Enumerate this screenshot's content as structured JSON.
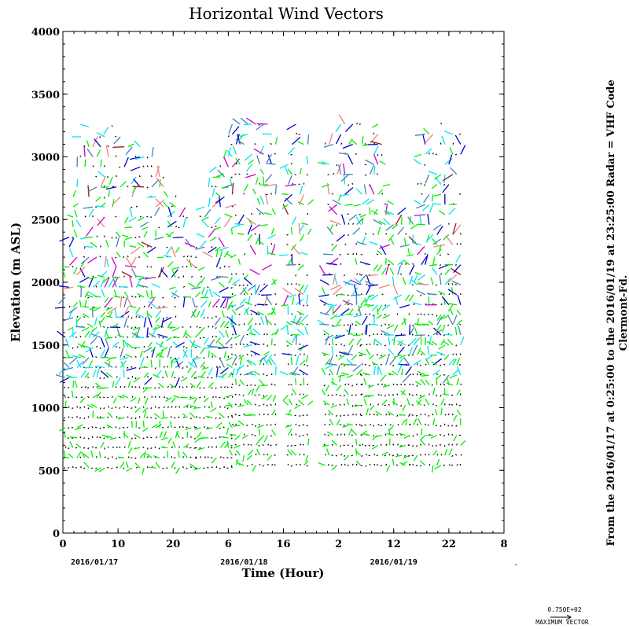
{
  "chart_data": {
    "type": "vector-field",
    "title": "Horizontal Wind Vectors",
    "xlabel": "Time (Hour)",
    "ylabel": "Elevation (m ASL)",
    "xlim": [
      0,
      56
    ],
    "ylim": [
      0,
      4000
    ],
    "x_tick_values": [
      0,
      7,
      14,
      21,
      28,
      35,
      42,
      49,
      56
    ],
    "x_tick_labels": [
      "0",
      "10",
      "20",
      "6",
      "16",
      "2",
      "12",
      "22",
      "8"
    ],
    "y_tick_values": [
      0,
      500,
      1000,
      1500,
      2000,
      2500,
      3000,
      3500,
      4000
    ],
    "y_tick_labels": [
      "0",
      "500",
      "1000",
      "1500",
      "2000",
      "2500",
      "3000",
      "3500",
      "4000"
    ],
    "date_labels": [
      {
        "x": 4,
        "label": "2016/01/17"
      },
      {
        "x": 23,
        "label": "2016/01/18"
      },
      {
        "x": 42,
        "label": "2016/01/19"
      }
    ],
    "side_label_1": "From the 2016/01/17 at  0:25:00 to the 2016/01/19 at 23:25:00 Radar = VHF Code",
    "side_label_2": "Clermont-Fd.",
    "max_vector_value": "0.750E+02",
    "max_vector_label": "MAXIMUM VECTOR",
    "grid": false,
    "legend": "none",
    "colors": {
      "calm": "#000000",
      "light": "#00ee00",
      "medium": "#00e5ee",
      "strong": "#4682b4",
      "stronger": "#0000cd",
      "very_strong": "#cc00cc",
      "extreme": "#f08080",
      "max": "#8b1a1a"
    },
    "segments": [
      {
        "name": "day1-early",
        "x_start": 0.3,
        "x_end": 17.0,
        "z_low": 520,
        "z_high_profile": [
          [
            0.3,
            2100
          ],
          [
            1,
            2600
          ],
          [
            2.5,
            3300
          ],
          [
            6,
            3300
          ],
          [
            8,
            3200
          ],
          [
            12,
            3000
          ],
          [
            15,
            2600
          ],
          [
            17,
            2400
          ]
        ]
      },
      {
        "name": "day1-late",
        "x_start": 17.0,
        "x_end": 21.5,
        "z_low": 520,
        "z_high_profile": [
          [
            17,
            2400
          ],
          [
            19,
            2900
          ],
          [
            21.5,
            3300
          ]
        ]
      },
      {
        "name": "day2-a",
        "x_start": 21.5,
        "x_end": 27.2,
        "z_low": 540,
        "z_high_profile": [
          [
            21.5,
            3300
          ],
          [
            27.2,
            3300
          ]
        ]
      },
      {
        "name": "day2-b",
        "x_start": 28.6,
        "x_end": 31.4,
        "z_low": 540,
        "z_high_profile": [
          [
            28.6,
            3300
          ],
          [
            31.4,
            3300
          ]
        ]
      },
      {
        "name": "day2-c",
        "x_start": 33.3,
        "x_end": 38.0,
        "z_low": 540,
        "z_high_profile": [
          [
            33.3,
            3150
          ],
          [
            35,
            3300
          ],
          [
            38,
            3300
          ]
        ]
      },
      {
        "name": "day3-a",
        "x_start": 38.0,
        "x_end": 44.0,
        "z_low": 540,
        "z_high_profile": [
          [
            38,
            3300
          ],
          [
            40,
            3300
          ],
          [
            42,
            2700
          ],
          [
            44,
            2500
          ]
        ]
      },
      {
        "name": "day3-b",
        "x_start": 44.0,
        "x_end": 50.8,
        "z_low": 540,
        "z_high_profile": [
          [
            44,
            2500
          ],
          [
            46,
            3200
          ],
          [
            48,
            3300
          ],
          [
            50.8,
            3250
          ]
        ]
      }
    ],
    "vector_spacing": {
      "dt": 0.5,
      "dz": 80
    }
  }
}
